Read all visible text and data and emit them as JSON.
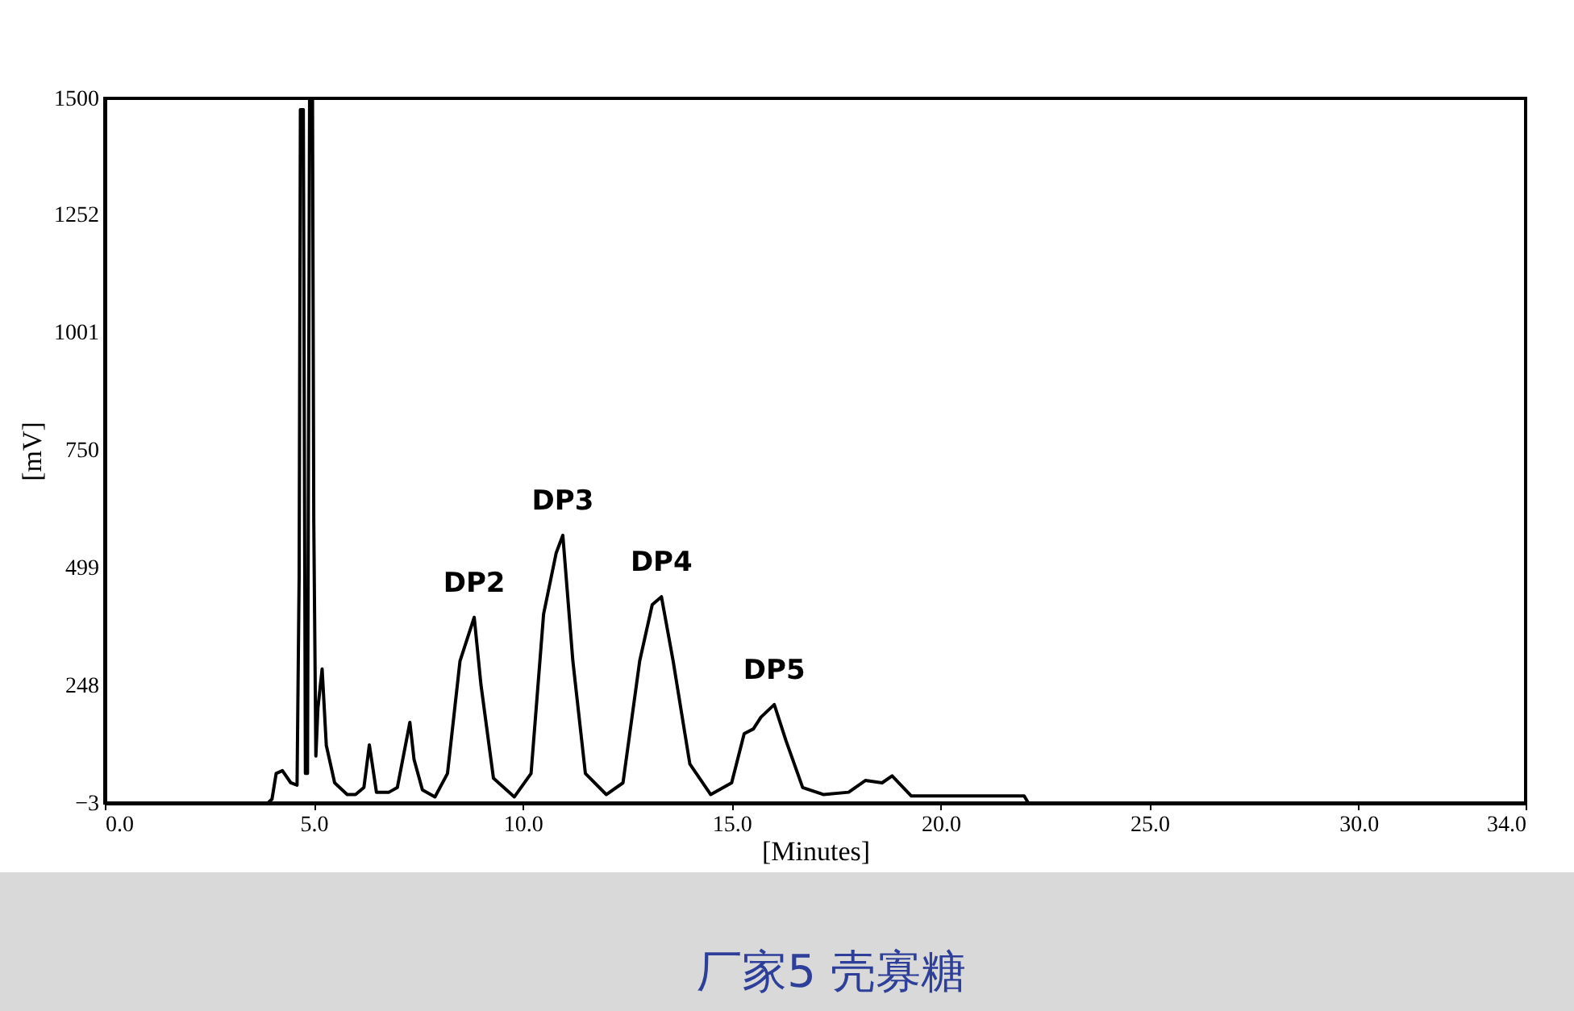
{
  "chart_data": {
    "type": "line",
    "xlabel": "[Minutes]",
    "ylabel": "[mV]",
    "xlim": [
      0,
      34
    ],
    "ylim": [
      -3,
      1500
    ],
    "xticks": [
      {
        "value": 0,
        "label": "0.0"
      },
      {
        "value": 5,
        "label": "5.0"
      },
      {
        "value": 10,
        "label": "10.0"
      },
      {
        "value": 15,
        "label": "15.0"
      },
      {
        "value": 20,
        "label": "20.0"
      },
      {
        "value": 25,
        "label": "25.0"
      },
      {
        "value": 30,
        "label": "30.0"
      },
      {
        "value": 34,
        "label": "34.0"
      }
    ],
    "yticks": [
      -3,
      248,
      499,
      750,
      1001,
      1252,
      1500
    ],
    "series": [
      {
        "color": "#000000",
        "x": [
          0,
          3.9,
          4.0,
          4.1,
          4.25,
          4.45,
          4.6,
          4.65,
          4.68,
          4.75,
          4.8,
          4.85,
          4.9,
          4.97,
          5.0,
          5.05,
          5.1,
          5.2,
          5.3,
          5.5,
          5.8,
          6.0,
          6.2,
          6.33,
          6.4,
          6.5,
          6.8,
          7.0,
          7.3,
          7.4,
          7.6,
          7.9,
          8.2,
          8.5,
          8.84,
          9.0,
          9.3,
          9.8,
          10.2,
          10.5,
          10.8,
          10.96,
          11.2,
          11.5,
          12.0,
          12.4,
          12.8,
          13.1,
          13.32,
          13.6,
          14.0,
          14.5,
          15.0,
          15.3,
          15.52,
          15.7,
          16.02,
          16.3,
          16.7,
          17.2,
          17.8,
          18.2,
          18.6,
          18.84,
          19.3,
          22.0,
          22.1,
          34
        ],
        "values": [
          -3,
          -3,
          5,
          60,
          66,
          40,
          35,
          480,
          1476,
          1476,
          60,
          60,
          1500,
          1500,
          600,
          97,
          200,
          283,
          120,
          40,
          15,
          15,
          30,
          121,
          80,
          20,
          20,
          30,
          169,
          90,
          25,
          10,
          60,
          300,
          393,
          250,
          50,
          10,
          60,
          400,
          530,
          568,
          300,
          60,
          15,
          40,
          300,
          420,
          437,
          300,
          80,
          15,
          40,
          145,
          155,
          180,
          207,
          130,
          30,
          15,
          20,
          45,
          40,
          55,
          12,
          12,
          -3,
          -3
        ]
      }
    ],
    "annotations": [
      {
        "text": "DP2",
        "x": 8.84,
        "y": 393
      },
      {
        "text": "DP3",
        "x": 10.96,
        "y": 568
      },
      {
        "text": "DP4",
        "x": 13.32,
        "y": 437
      },
      {
        "text": "DP5",
        "x": 16.02,
        "y": 207
      },
      "厂家5  壳寡糖"
    ]
  }
}
